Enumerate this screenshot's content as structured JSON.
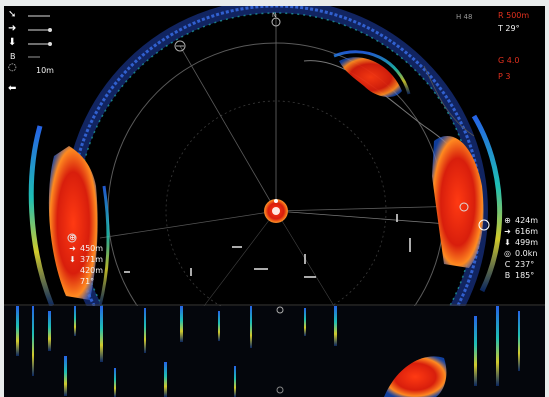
{
  "top_right": {
    "range": "R 500m",
    "tilt": "T 29°",
    "gain_row": "G 4.0",
    "preset_row": "P 3"
  },
  "top_small": "H 48",
  "left_panel": {
    "b_label": "B",
    "range_value": "10m"
  },
  "right_readouts": [
    {
      "icon": "target-icon",
      "glyph": "⊕",
      "value": "424m"
    },
    {
      "icon": "arrow-right-icon",
      "glyph": "➜",
      "value": "616m"
    },
    {
      "icon": "arrow-down-icon",
      "glyph": "⬇",
      "value": "499m"
    },
    {
      "icon": "speed-icon",
      "glyph": "◎",
      "value": "0.0kn"
    },
    {
      "icon": "course-icon",
      "glyph": "C",
      "value": "237°"
    },
    {
      "icon": "bearing-icon",
      "glyph": "B",
      "value": "185°"
    }
  ],
  "left_readouts": [
    {
      "icon": "target-icon",
      "glyph": "⊕",
      "value": ""
    },
    {
      "icon": "arrow-right-icon",
      "glyph": "➜",
      "value": "450m"
    },
    {
      "icon": "arrow-down-icon",
      "glyph": "⬇",
      "value": "371m"
    },
    {
      "icon": "depth-icon",
      "glyph": "",
      "value": "420m"
    },
    {
      "icon": "angle-icon",
      "glyph": "",
      "value": "71°"
    }
  ]
}
